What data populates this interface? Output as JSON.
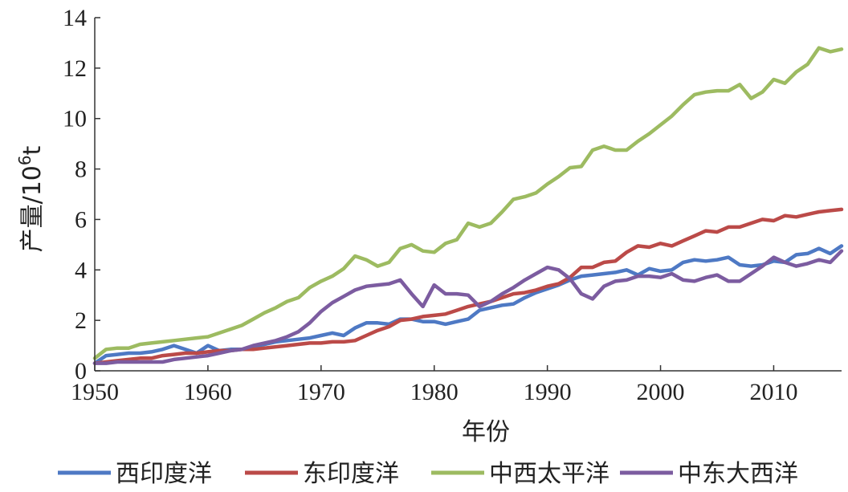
{
  "chart_data": {
    "type": "line",
    "xlabel": "年份",
    "ylabel": "产量/10",
    "ylabel_sup": "6",
    "ylabel_unit": "t",
    "xlim": [
      1950,
      2016
    ],
    "ylim": [
      0,
      14
    ],
    "x_ticks": [
      1950,
      1960,
      1970,
      1980,
      1990,
      2000,
      2010
    ],
    "y_ticks": [
      0,
      2,
      4,
      6,
      8,
      10,
      12,
      14
    ],
    "grid": false,
    "legend_position": "bottom",
    "x": [
      1950,
      1951,
      1952,
      1953,
      1954,
      1955,
      1956,
      1957,
      1958,
      1959,
      1960,
      1961,
      1962,
      1963,
      1964,
      1965,
      1966,
      1967,
      1968,
      1969,
      1970,
      1971,
      1972,
      1973,
      1974,
      1975,
      1976,
      1977,
      1978,
      1979,
      1980,
      1981,
      1982,
      1983,
      1984,
      1985,
      1986,
      1987,
      1988,
      1989,
      1990,
      1991,
      1992,
      1993,
      1994,
      1995,
      1996,
      1997,
      1998,
      1999,
      2000,
      2001,
      2002,
      2003,
      2004,
      2005,
      2006,
      2007,
      2008,
      2009,
      2010,
      2011,
      2012,
      2013,
      2014,
      2015,
      2016
    ],
    "series": [
      {
        "name": "西印度洋",
        "color": "#4e79c4",
        "values": [
          0.3,
          0.6,
          0.65,
          0.7,
          0.7,
          0.75,
          0.85,
          1.0,
          0.85,
          0.7,
          1.0,
          0.8,
          0.85,
          0.85,
          0.95,
          1.05,
          1.15,
          1.2,
          1.25,
          1.3,
          1.4,
          1.5,
          1.4,
          1.7,
          1.9,
          1.9,
          1.85,
          2.05,
          2.05,
          1.95,
          1.95,
          1.85,
          1.95,
          2.05,
          2.4,
          2.5,
          2.6,
          2.65,
          2.9,
          3.1,
          3.25,
          3.4,
          3.6,
          3.75,
          3.8,
          3.85,
          3.9,
          4.0,
          3.8,
          4.05,
          3.95,
          4.0,
          4.3,
          4.4,
          4.35,
          4.4,
          4.5,
          4.2,
          4.15,
          4.2,
          4.35,
          4.3,
          4.6,
          4.65,
          4.85,
          4.65,
          4.95
        ]
      },
      {
        "name": "东印度洋",
        "color": "#bb4a48",
        "values": [
          0.3,
          0.35,
          0.4,
          0.45,
          0.5,
          0.5,
          0.6,
          0.65,
          0.7,
          0.7,
          0.75,
          0.8,
          0.8,
          0.85,
          0.85,
          0.9,
          0.95,
          1.0,
          1.05,
          1.1,
          1.1,
          1.15,
          1.15,
          1.2,
          1.4,
          1.6,
          1.75,
          2.0,
          2.05,
          2.15,
          2.2,
          2.25,
          2.4,
          2.55,
          2.65,
          2.75,
          2.9,
          3.05,
          3.1,
          3.2,
          3.35,
          3.45,
          3.7,
          4.1,
          4.1,
          4.3,
          4.35,
          4.7,
          4.95,
          4.9,
          5.05,
          4.95,
          5.15,
          5.35,
          5.55,
          5.5,
          5.7,
          5.7,
          5.85,
          6.0,
          5.95,
          6.15,
          6.1,
          6.2,
          6.3,
          6.35,
          6.4
        ]
      },
      {
        "name": "中西太平洋",
        "color": "#9dbb61",
        "values": [
          0.5,
          0.85,
          0.9,
          0.9,
          1.05,
          1.1,
          1.15,
          1.2,
          1.25,
          1.3,
          1.35,
          1.5,
          1.65,
          1.8,
          2.05,
          2.3,
          2.5,
          2.75,
          2.9,
          3.3,
          3.55,
          3.75,
          4.05,
          4.55,
          4.4,
          4.15,
          4.3,
          4.85,
          5.0,
          4.75,
          4.7,
          5.05,
          5.2,
          5.85,
          5.7,
          5.85,
          6.3,
          6.8,
          6.9,
          7.05,
          7.4,
          7.7,
          8.05,
          8.1,
          8.75,
          8.9,
          8.75,
          8.75,
          9.1,
          9.4,
          9.75,
          10.1,
          10.55,
          10.95,
          11.05,
          11.1,
          11.1,
          11.35,
          10.8,
          11.05,
          11.55,
          11.4,
          11.85,
          12.15,
          12.8,
          12.65,
          12.75
        ]
      },
      {
        "name": "中东大西洋",
        "color": "#7c5ca0",
        "values": [
          0.3,
          0.3,
          0.35,
          0.35,
          0.35,
          0.35,
          0.35,
          0.45,
          0.5,
          0.55,
          0.6,
          0.7,
          0.8,
          0.85,
          1.0,
          1.1,
          1.2,
          1.35,
          1.55,
          1.9,
          2.35,
          2.7,
          2.95,
          3.2,
          3.35,
          3.4,
          3.45,
          3.6,
          3.05,
          2.55,
          3.4,
          3.05,
          3.05,
          3.0,
          2.55,
          2.75,
          3.05,
          3.3,
          3.6,
          3.85,
          4.1,
          4.0,
          3.65,
          3.05,
          2.85,
          3.35,
          3.55,
          3.6,
          3.75,
          3.75,
          3.7,
          3.85,
          3.6,
          3.55,
          3.7,
          3.8,
          3.55,
          3.55,
          3.85,
          4.15,
          4.5,
          4.3,
          4.15,
          4.25,
          4.4,
          4.3,
          4.75
        ]
      }
    ]
  }
}
